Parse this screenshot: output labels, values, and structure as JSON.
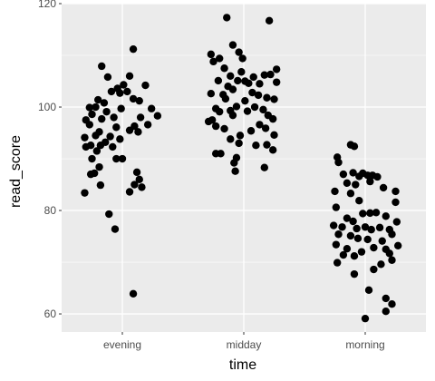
{
  "chart_data": {
    "type": "scatter",
    "title": "",
    "xlabel": "time",
    "ylabel": "read_score",
    "categories": [
      "evening",
      "midday",
      "morning"
    ],
    "ylim": [
      56.5,
      120
    ],
    "y_ticks": [
      60,
      80,
      100,
      120
    ],
    "grid": true,
    "theme": {
      "panel_bg": "#ebebeb",
      "grid_color": "#ffffff",
      "point_color": "#000000"
    },
    "points": [
      {
        "category": "evening",
        "x": -0.31,
        "y": 83.4
      },
      {
        "category": "evening",
        "x": -0.26,
        "y": 87.0
      },
      {
        "category": "evening",
        "x": -0.23,
        "y": 87.2
      },
      {
        "category": "evening",
        "x": -0.25,
        "y": 90.0
      },
      {
        "category": "evening",
        "x": -0.3,
        "y": 92.3
      },
      {
        "category": "evening",
        "x": -0.26,
        "y": 92.6
      },
      {
        "category": "evening",
        "x": -0.31,
        "y": 94.1
      },
      {
        "category": "evening",
        "x": -0.22,
        "y": 94.5
      },
      {
        "category": "evening",
        "x": -0.27,
        "y": 96.6
      },
      {
        "category": "evening",
        "x": -0.3,
        "y": 97.5
      },
      {
        "category": "evening",
        "x": -0.25,
        "y": 98.6
      },
      {
        "category": "evening",
        "x": -0.27,
        "y": 99.9
      },
      {
        "category": "evening",
        "x": -0.22,
        "y": 100.0
      },
      {
        "category": "evening",
        "x": -0.2,
        "y": 101.4
      },
      {
        "category": "evening",
        "x": -0.17,
        "y": 107.9
      },
      {
        "category": "evening",
        "x": -0.12,
        "y": 105.8
      },
      {
        "category": "evening",
        "x": -0.09,
        "y": 103.0
      },
      {
        "category": "evening",
        "x": -0.04,
        "y": 103.6
      },
      {
        "category": "evening",
        "x": -0.02,
        "y": 102.7
      },
      {
        "category": "evening",
        "x": 0.01,
        "y": 104.3
      },
      {
        "category": "evening",
        "x": 0.04,
        "y": 103.0
      },
      {
        "category": "evening",
        "x": 0.09,
        "y": 101.6
      },
      {
        "category": "evening",
        "x": 0.14,
        "y": 101.2
      },
      {
        "category": "evening",
        "x": 0.19,
        "y": 104.2
      },
      {
        "category": "evening",
        "x": 0.24,
        "y": 99.7
      },
      {
        "category": "evening",
        "x": 0.29,
        "y": 98.3
      },
      {
        "category": "evening",
        "x": 0.09,
        "y": 111.2
      },
      {
        "category": "evening",
        "x": 0.06,
        "y": 106.0
      },
      {
        "category": "evening",
        "x": -0.15,
        "y": 100.8
      },
      {
        "category": "evening",
        "x": -0.13,
        "y": 99.1
      },
      {
        "category": "evening",
        "x": -0.17,
        "y": 97.7
      },
      {
        "category": "evening",
        "x": -0.07,
        "y": 98.0
      },
      {
        "category": "evening",
        "x": -0.01,
        "y": 99.7
      },
      {
        "category": "evening",
        "x": 0.15,
        "y": 98.0
      },
      {
        "category": "evening",
        "x": 0.21,
        "y": 96.6
      },
      {
        "category": "evening",
        "x": 0.1,
        "y": 96.3
      },
      {
        "category": "evening",
        "x": 0.06,
        "y": 95.5
      },
      {
        "category": "evening",
        "x": 0.13,
        "y": 95.2
      },
      {
        "category": "evening",
        "x": -0.05,
        "y": 96.1
      },
      {
        "category": "evening",
        "x": -0.19,
        "y": 95.2
      },
      {
        "category": "evening",
        "x": -0.1,
        "y": 94.3
      },
      {
        "category": "evening",
        "x": -0.02,
        "y": 93.8
      },
      {
        "category": "evening",
        "x": -0.14,
        "y": 93.2
      },
      {
        "category": "evening",
        "x": -0.18,
        "y": 92.6
      },
      {
        "category": "evening",
        "x": -0.08,
        "y": 92.3
      },
      {
        "category": "evening",
        "x": -0.21,
        "y": 91.5
      },
      {
        "category": "evening",
        "x": 0.0,
        "y": 90.0
      },
      {
        "category": "evening",
        "x": -0.05,
        "y": 90.0
      },
      {
        "category": "evening",
        "x": -0.19,
        "y": 88.4
      },
      {
        "category": "evening",
        "x": 0.12,
        "y": 87.4
      },
      {
        "category": "evening",
        "x": 0.14,
        "y": 86.0
      },
      {
        "category": "evening",
        "x": 0.1,
        "y": 85.0
      },
      {
        "category": "evening",
        "x": 0.16,
        "y": 84.5
      },
      {
        "category": "evening",
        "x": 0.06,
        "y": 83.6
      },
      {
        "category": "evening",
        "x": -0.18,
        "y": 84.9
      },
      {
        "category": "evening",
        "x": -0.11,
        "y": 79.3
      },
      {
        "category": "evening",
        "x": -0.06,
        "y": 76.4
      },
      {
        "category": "evening",
        "x": 0.09,
        "y": 63.9
      },
      {
        "category": "midday",
        "x": -0.27,
        "y": 110.2
      },
      {
        "category": "midday",
        "x": -0.25,
        "y": 108.8
      },
      {
        "category": "midday",
        "x": -0.2,
        "y": 109.4
      },
      {
        "category": "midday",
        "x": -0.16,
        "y": 107.5
      },
      {
        "category": "midday",
        "x": -0.13,
        "y": 104.0
      },
      {
        "category": "midday",
        "x": -0.11,
        "y": 106.0
      },
      {
        "category": "midday",
        "x": -0.17,
        "y": 102.4
      },
      {
        "category": "midday",
        "x": -0.21,
        "y": 105.1
      },
      {
        "category": "midday",
        "x": -0.27,
        "y": 102.6
      },
      {
        "category": "midday",
        "x": -0.23,
        "y": 99.7
      },
      {
        "category": "midday",
        "x": -0.26,
        "y": 97.5
      },
      {
        "category": "midday",
        "x": -0.29,
        "y": 97.2
      },
      {
        "category": "midday",
        "x": -0.23,
        "y": 96.3
      },
      {
        "category": "midday",
        "x": -0.2,
        "y": 99.1
      },
      {
        "category": "midday",
        "x": -0.11,
        "y": 99.3
      },
      {
        "category": "midday",
        "x": -0.15,
        "y": 101.6
      },
      {
        "category": "midday",
        "x": -0.09,
        "y": 103.4
      },
      {
        "category": "midday",
        "x": -0.05,
        "y": 105.1
      },
      {
        "category": "midday",
        "x": -0.02,
        "y": 106.8
      },
      {
        "category": "midday",
        "x": 0.01,
        "y": 105.0
      },
      {
        "category": "midday",
        "x": 0.04,
        "y": 104.6
      },
      {
        "category": "midday",
        "x": 0.08,
        "y": 105.8
      },
      {
        "category": "midday",
        "x": 0.13,
        "y": 104.5
      },
      {
        "category": "midday",
        "x": 0.17,
        "y": 106.2
      },
      {
        "category": "midday",
        "x": 0.22,
        "y": 106.3
      },
      {
        "category": "midday",
        "x": 0.27,
        "y": 107.3
      },
      {
        "category": "midday",
        "x": -0.01,
        "y": 109.4
      },
      {
        "category": "midday",
        "x": -0.04,
        "y": 110.6
      },
      {
        "category": "midday",
        "x": -0.09,
        "y": 112.0
      },
      {
        "category": "midday",
        "x": -0.14,
        "y": 117.3
      },
      {
        "category": "midday",
        "x": 0.21,
        "y": 116.7
      },
      {
        "category": "midday",
        "x": 0.07,
        "y": 102.8
      },
      {
        "category": "midday",
        "x": 0.12,
        "y": 102.3
      },
      {
        "category": "midday",
        "x": 0.19,
        "y": 101.8
      },
      {
        "category": "midday",
        "x": 0.25,
        "y": 101.5
      },
      {
        "category": "midday",
        "x": 0.27,
        "y": 104.8
      },
      {
        "category": "midday",
        "x": 0.01,
        "y": 101.2
      },
      {
        "category": "midday",
        "x": -0.06,
        "y": 100.1
      },
      {
        "category": "midday",
        "x": -0.09,
        "y": 98.4
      },
      {
        "category": "midday",
        "x": 0.03,
        "y": 99.2
      },
      {
        "category": "midday",
        "x": 0.09,
        "y": 100.0
      },
      {
        "category": "midday",
        "x": 0.16,
        "y": 99.5
      },
      {
        "category": "midday",
        "x": 0.2,
        "y": 98.4
      },
      {
        "category": "midday",
        "x": 0.24,
        "y": 97.7
      },
      {
        "category": "midday",
        "x": 0.13,
        "y": 96.6
      },
      {
        "category": "midday",
        "x": 0.18,
        "y": 95.9
      },
      {
        "category": "midday",
        "x": 0.06,
        "y": 95.4
      },
      {
        "category": "midday",
        "x": 0.25,
        "y": 94.6
      },
      {
        "category": "midday",
        "x": -0.03,
        "y": 94.5
      },
      {
        "category": "midday",
        "x": -0.16,
        "y": 95.8
      },
      {
        "category": "midday",
        "x": -0.11,
        "y": 93.8
      },
      {
        "category": "midday",
        "x": -0.04,
        "y": 93.0
      },
      {
        "category": "midday",
        "x": 0.1,
        "y": 92.6
      },
      {
        "category": "midday",
        "x": 0.19,
        "y": 92.7
      },
      {
        "category": "midday",
        "x": 0.24,
        "y": 91.7
      },
      {
        "category": "midday",
        "x": -0.23,
        "y": 91.0
      },
      {
        "category": "midday",
        "x": -0.19,
        "y": 91.0
      },
      {
        "category": "midday",
        "x": -0.06,
        "y": 90.2
      },
      {
        "category": "midday",
        "x": -0.08,
        "y": 89.2
      },
      {
        "category": "midday",
        "x": -0.07,
        "y": 87.6
      },
      {
        "category": "midday",
        "x": 0.17,
        "y": 88.3
      },
      {
        "category": "morning",
        "x": -0.23,
        "y": 90.3
      },
      {
        "category": "morning",
        "x": -0.22,
        "y": 89.3
      },
      {
        "category": "morning",
        "x": -0.12,
        "y": 92.7
      },
      {
        "category": "morning",
        "x": -0.09,
        "y": 92.4
      },
      {
        "category": "morning",
        "x": -0.18,
        "y": 87.0
      },
      {
        "category": "morning",
        "x": -0.1,
        "y": 87.3
      },
      {
        "category": "morning",
        "x": -0.05,
        "y": 86.6
      },
      {
        "category": "morning",
        "x": -0.02,
        "y": 87.2
      },
      {
        "category": "morning",
        "x": 0.02,
        "y": 86.8
      },
      {
        "category": "morning",
        "x": 0.06,
        "y": 86.8
      },
      {
        "category": "morning",
        "x": 0.1,
        "y": 86.5
      },
      {
        "category": "morning",
        "x": 0.04,
        "y": 85.6
      },
      {
        "category": "morning",
        "x": -0.15,
        "y": 85.3
      },
      {
        "category": "morning",
        "x": -0.08,
        "y": 85.0
      },
      {
        "category": "morning",
        "x": 0.15,
        "y": 84.4
      },
      {
        "category": "morning",
        "x": 0.25,
        "y": 83.7
      },
      {
        "category": "morning",
        "x": -0.25,
        "y": 83.7
      },
      {
        "category": "morning",
        "x": -0.12,
        "y": 83.3
      },
      {
        "category": "morning",
        "x": -0.05,
        "y": 81.9
      },
      {
        "category": "morning",
        "x": 0.25,
        "y": 81.6
      },
      {
        "category": "morning",
        "x": -0.24,
        "y": 80.6
      },
      {
        "category": "morning",
        "x": -0.02,
        "y": 79.4
      },
      {
        "category": "morning",
        "x": 0.04,
        "y": 79.5
      },
      {
        "category": "morning",
        "x": 0.09,
        "y": 79.6
      },
      {
        "category": "morning",
        "x": 0.17,
        "y": 78.9
      },
      {
        "category": "morning",
        "x": -0.15,
        "y": 78.5
      },
      {
        "category": "morning",
        "x": -0.1,
        "y": 77.9
      },
      {
        "category": "morning",
        "x": 0.26,
        "y": 77.8
      },
      {
        "category": "morning",
        "x": -0.26,
        "y": 77.1
      },
      {
        "category": "morning",
        "x": -0.19,
        "y": 76.8
      },
      {
        "category": "morning",
        "x": -0.07,
        "y": 76.5
      },
      {
        "category": "morning",
        "x": 0.0,
        "y": 76.8
      },
      {
        "category": "morning",
        "x": 0.05,
        "y": 76.3
      },
      {
        "category": "morning",
        "x": 0.12,
        "y": 76.7
      },
      {
        "category": "morning",
        "x": 0.2,
        "y": 76.3
      },
      {
        "category": "morning",
        "x": 0.22,
        "y": 75.4
      },
      {
        "category": "morning",
        "x": -0.22,
        "y": 75.4
      },
      {
        "category": "morning",
        "x": -0.12,
        "y": 75.1
      },
      {
        "category": "morning",
        "x": -0.06,
        "y": 74.6
      },
      {
        "category": "morning",
        "x": 0.02,
        "y": 74.4
      },
      {
        "category": "morning",
        "x": 0.14,
        "y": 74.1
      },
      {
        "category": "morning",
        "x": 0.27,
        "y": 73.2
      },
      {
        "category": "morning",
        "x": -0.24,
        "y": 73.4
      },
      {
        "category": "morning",
        "x": -0.15,
        "y": 72.6
      },
      {
        "category": "morning",
        "x": 0.07,
        "y": 72.8
      },
      {
        "category": "morning",
        "x": 0.17,
        "y": 72.5
      },
      {
        "category": "morning",
        "x": -0.03,
        "y": 72.0
      },
      {
        "category": "morning",
        "x": 0.2,
        "y": 71.7
      },
      {
        "category": "morning",
        "x": -0.18,
        "y": 71.4
      },
      {
        "category": "morning",
        "x": -0.09,
        "y": 71.2
      },
      {
        "category": "morning",
        "x": 0.22,
        "y": 70.4
      },
      {
        "category": "morning",
        "x": -0.23,
        "y": 69.9
      },
      {
        "category": "morning",
        "x": 0.13,
        "y": 69.6
      },
      {
        "category": "morning",
        "x": 0.07,
        "y": 68.6
      },
      {
        "category": "morning",
        "x": -0.09,
        "y": 67.7
      },
      {
        "category": "morning",
        "x": 0.03,
        "y": 64.6
      },
      {
        "category": "morning",
        "x": 0.17,
        "y": 63.0
      },
      {
        "category": "morning",
        "x": 0.22,
        "y": 61.9
      },
      {
        "category": "morning",
        "x": 0.17,
        "y": 60.5
      },
      {
        "category": "morning",
        "x": 0.0,
        "y": 59.1
      }
    ]
  }
}
